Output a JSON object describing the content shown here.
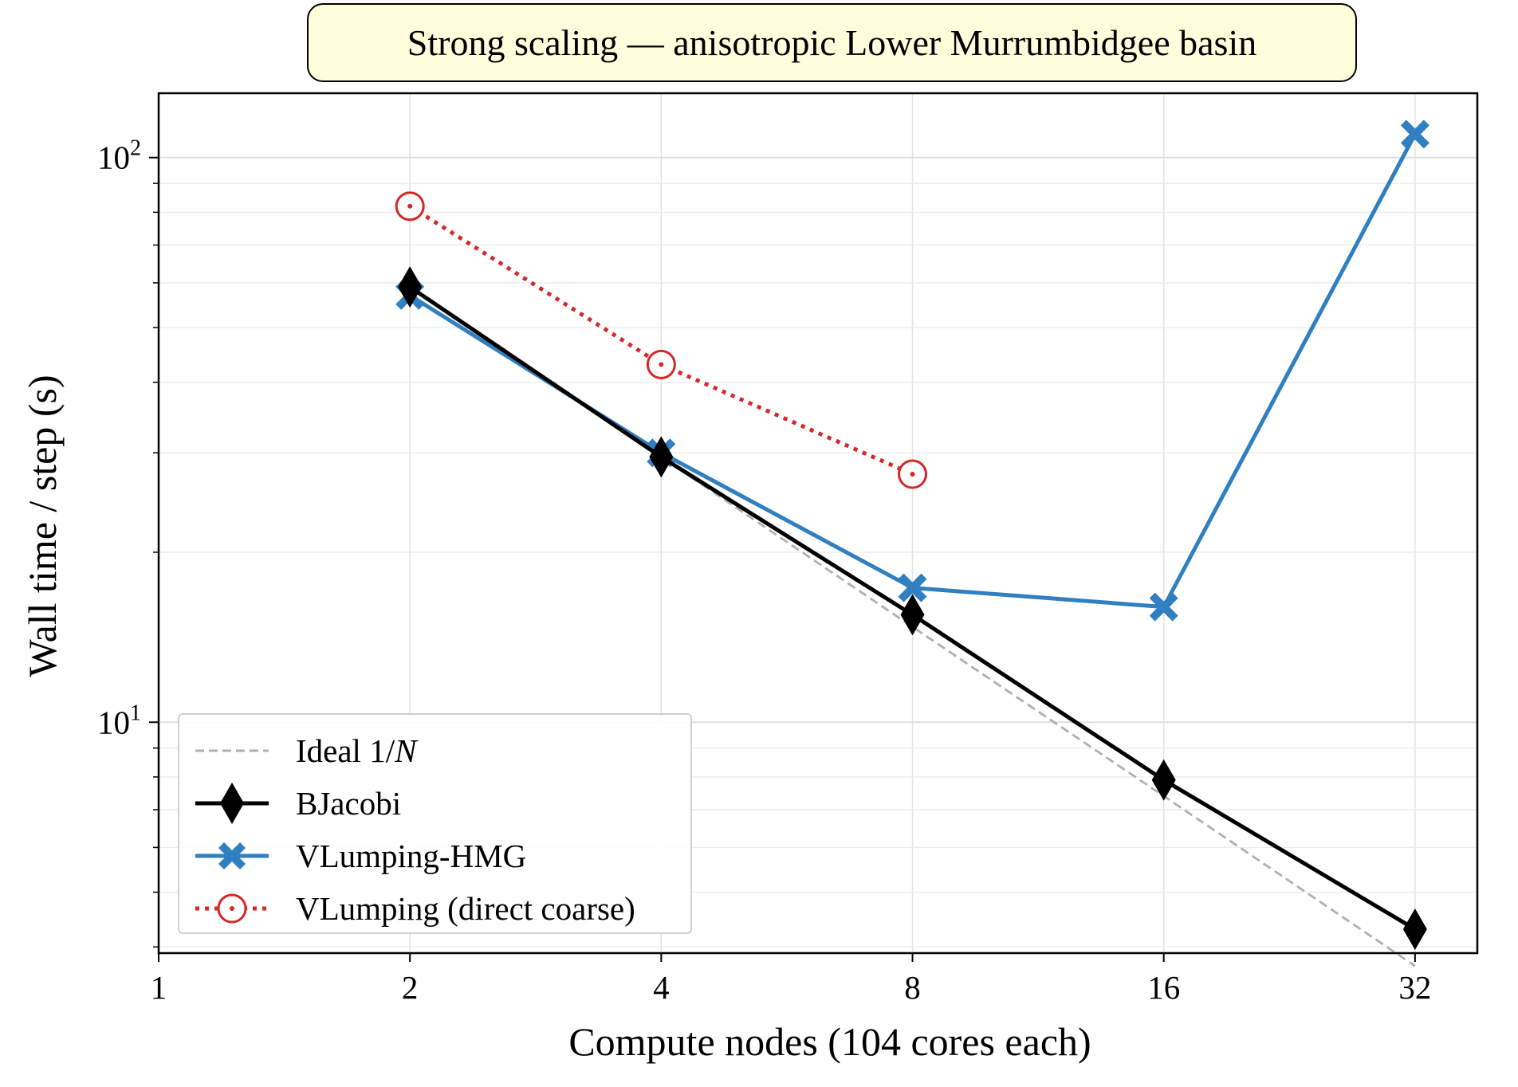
{
  "chart_data": {
    "type": "line",
    "title": "Strong scaling — anisotropic Lower Murrumbidgee basin",
    "xlabel": "Compute nodes (104 cores each)",
    "ylabel": "Wall time / step (s)",
    "xscale": "log2",
    "yscale": "log10",
    "xlim": [
      1,
      38
    ],
    "ylim": [
      3.9,
      130
    ],
    "x_ticks": [
      "1",
      "2",
      "4",
      "8",
      "16",
      "32"
    ],
    "x_tick_values": [
      1,
      2,
      4,
      8,
      16,
      32
    ],
    "y_ticks": [
      {
        "base": "10",
        "exp": "1",
        "value": 10
      },
      {
        "base": "10",
        "exp": "2",
        "value": 100
      }
    ],
    "grid": true,
    "legend_position": "lower-left",
    "series": [
      {
        "name": "Ideal 1/N",
        "name_parts": [
          "Ideal 1/",
          "N"
        ],
        "style": "dashed",
        "color": "#b0b0b0",
        "marker": "none",
        "x": [
          2,
          4,
          8,
          16,
          32
        ],
        "y": [
          59,
          29.5,
          14.75,
          7.4,
          3.7
        ]
      },
      {
        "name": "BJacobi",
        "style": "solid",
        "color": "#000000",
        "marker": "thin-diamond",
        "x": [
          2,
          4,
          8,
          16,
          32
        ],
        "y": [
          59,
          29.5,
          15.5,
          7.9,
          4.3
        ]
      },
      {
        "name": "VLumping-HMG",
        "style": "solid",
        "color": "#2f7fc1",
        "marker": "X",
        "x": [
          2,
          4,
          8,
          16,
          32
        ],
        "y": [
          57,
          30,
          17.3,
          16,
          110
        ]
      },
      {
        "name": "VLumping (direct coarse)",
        "style": "dotted",
        "color": "#d62728",
        "marker": "circle-dot",
        "x": [
          2,
          4,
          8
        ],
        "y": [
          82,
          43,
          27.5
        ]
      }
    ]
  }
}
